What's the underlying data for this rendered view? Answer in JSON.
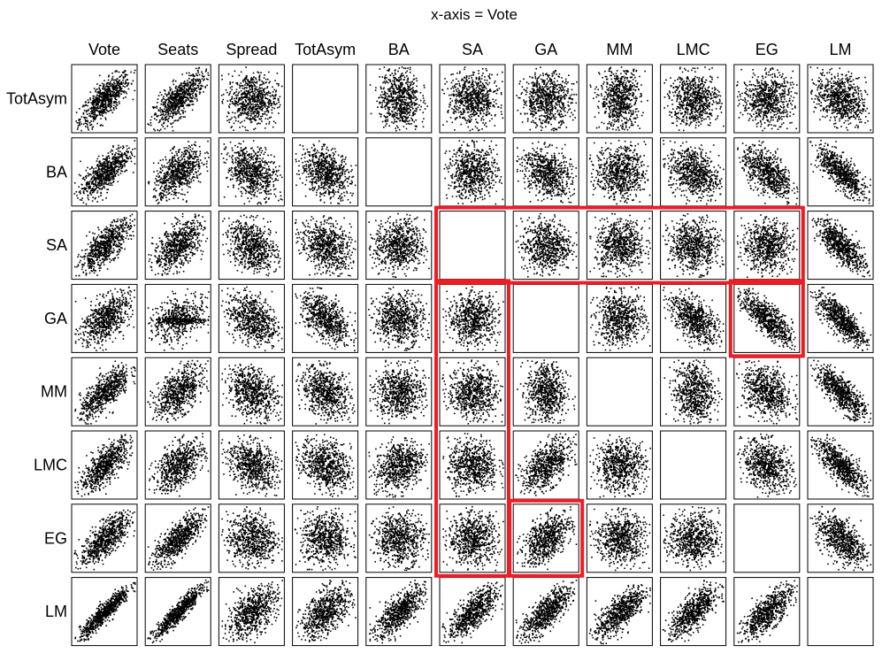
{
  "chart_data": {
    "type": "scatter",
    "title": "x-axis = Vote",
    "columns": [
      "Vote",
      "Seats",
      "Spread",
      "TotAsym",
      "BA",
      "SA",
      "GA",
      "MM",
      "LMC",
      "EG",
      "LM"
    ],
    "rows": [
      "TotAsym",
      "BA",
      "SA",
      "GA",
      "MM",
      "LMC",
      "EG",
      "LM"
    ],
    "empty_panels": [
      {
        "row": "TotAsym",
        "col": "TotAsym"
      },
      {
        "row": "BA",
        "col": "BA"
      },
      {
        "row": "SA",
        "col": "SA"
      },
      {
        "row": "GA",
        "col": "GA"
      },
      {
        "row": "MM",
        "col": "MM"
      },
      {
        "row": "LMC",
        "col": "LMC"
      },
      {
        "row": "EG",
        "col": "EG"
      },
      {
        "row": "LM",
        "col": "LM"
      }
    ],
    "points_per_panel": 700,
    "panel_patterns": [
      [
        "pos-strong",
        "pos-strong",
        "blob",
        "none",
        "blob-tall",
        "blob",
        "blob",
        "blob-tall",
        "blob",
        "blob",
        "neg-weak"
      ],
      [
        "pos-strong",
        "pos-mid",
        "neg-weak",
        "neg-weak",
        "none",
        "blob",
        "neg-weak",
        "blob",
        "neg-weak",
        "neg-mid",
        "neg-strong"
      ],
      [
        "pos-strong",
        "pos-mid",
        "neg-weak",
        "neg-weak",
        "blob",
        "none",
        "blob",
        "blob",
        "blob",
        "blob",
        "neg-strong"
      ],
      [
        "pos-mid",
        "horiz-band",
        "neg-weak",
        "neg-mid",
        "blob",
        "blob",
        "none",
        "blob",
        "neg-mid",
        "neg-strong",
        "neg-strong"
      ],
      [
        "pos-strong",
        "pos-mid",
        "neg-weak",
        "neg-weak",
        "blob",
        "blob",
        "blob-tall",
        "none",
        "blob-tall",
        "neg-weak",
        "neg-strong"
      ],
      [
        "pos-strong",
        "pos-mid",
        "neg-weak",
        "neg-weak",
        "pos-weak",
        "blob",
        "pos-mid",
        "blob",
        "none",
        "neg-weak",
        "neg-strong"
      ],
      [
        "pos-strong",
        "pos-strong",
        "blob",
        "blob",
        "blob",
        "blob",
        "pos-mid",
        "blob",
        "blob",
        "none",
        "neg-mid"
      ],
      [
        "pos-vstrong",
        "pos-vstrong",
        "pos-mid",
        "pos-mid",
        "pos-strong",
        "pos-strong",
        "pos-strong",
        "pos-strong",
        "pos-strong",
        "pos-strong",
        "none"
      ]
    ],
    "highlights": [
      {
        "color": "#ee1c25",
        "rows": [
          "SA",
          "SA"
        ],
        "cols": [
          "SA",
          "EG"
        ]
      },
      {
        "color": "#ee1c25",
        "rows": [
          "GA",
          "EG"
        ],
        "cols": [
          "SA",
          "SA"
        ]
      },
      {
        "color": "#ee1c25",
        "rows": [
          "GA",
          "GA"
        ],
        "cols": [
          "EG",
          "EG"
        ]
      },
      {
        "color": "#ee1c25",
        "rows": [
          "EG",
          "EG"
        ],
        "cols": [
          "GA",
          "GA"
        ]
      }
    ],
    "grid": false,
    "legend": "none"
  }
}
